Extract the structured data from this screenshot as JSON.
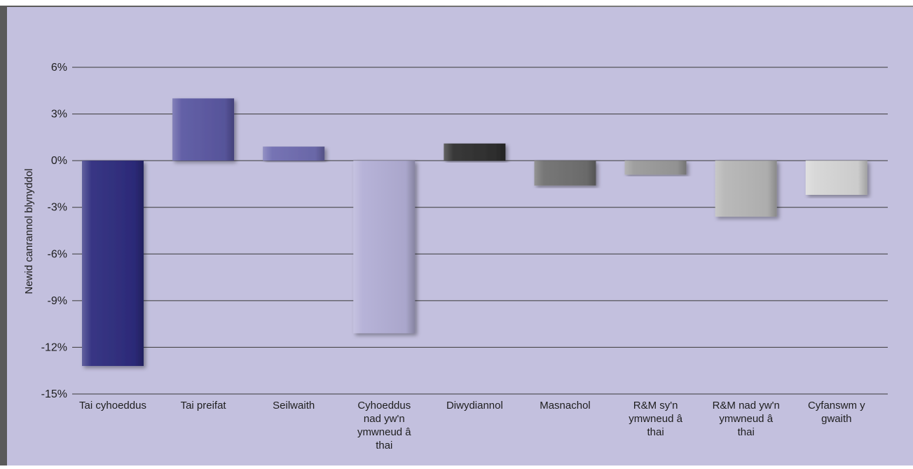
{
  "chart_data": {
    "type": "bar",
    "title": "",
    "xlabel": "",
    "ylabel": "Newid canrannol blynyddol",
    "ylim": [
      -15,
      6
    ],
    "yticks": [
      6,
      3,
      0,
      -3,
      -6,
      -9,
      -12,
      -15
    ],
    "ytick_suffix": "%",
    "grid": true,
    "legend": "none",
    "categories": [
      "Tai cyhoeddus",
      "Tai preifat",
      "Seilwaith",
      "Cyhoeddus nad yw'n ymwneud â thai",
      "Diwydiannol",
      "Masnachol",
      "R&M sy'n ymwneud â thai",
      "R&M nad yw'n ymwneud â thai",
      "Cyfanswm y gwaith"
    ],
    "values": [
      -13.2,
      4.0,
      0.9,
      -11.1,
      1.1,
      -1.6,
      -0.9,
      -3.6,
      -2.2
    ],
    "colors": [
      "#2e2c7e",
      "#5b58a2",
      "#6f6cb0",
      "#b3afd6",
      "#2f2f2f",
      "#707070",
      "#9a9a9a",
      "#b6b6b6",
      "#d6d6d6"
    ],
    "background_color": "#c3c0de",
    "frame_color": "#6f6f6f",
    "category_labels": [
      [
        "Tai cyhoeddus"
      ],
      [
        "Tai preifat"
      ],
      [
        "Seilwaith"
      ],
      [
        "Cyhoeddus",
        "nad yw'n",
        "ymwneud â",
        "thai"
      ],
      [
        "Diwydiannol"
      ],
      [
        "Masnachol"
      ],
      [
        "R&M sy'n",
        "ymwneud â",
        "thai"
      ],
      [
        "R&M nad yw'n",
        "ymwneud â",
        "thai"
      ],
      [
        "Cyfanswm y",
        "gwaith"
      ]
    ]
  }
}
